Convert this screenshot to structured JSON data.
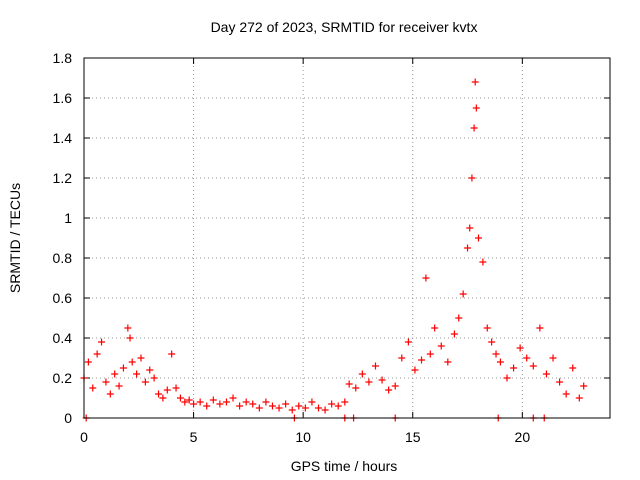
{
  "chart_data": {
    "type": "scatter",
    "title": "Day 272 of 2023, SRMTID for receiver kvtx",
    "xlabel": "GPS time / hours",
    "ylabel": "SRMTID / TECUs",
    "xlim": [
      0,
      24
    ],
    "ylim": [
      0,
      1.8
    ],
    "xticks": [
      0,
      5,
      10,
      15,
      20
    ],
    "yticks": [
      0,
      0.2,
      0.4,
      0.6,
      0.8,
      1,
      1.2,
      1.4,
      1.6,
      1.8
    ],
    "ytick_labels": [
      "0",
      "0.2",
      "0.4",
      "0.6",
      "0.8",
      "1",
      "1.2",
      "1.4",
      "1.6",
      "1.8"
    ],
    "grid": true,
    "marker": "plus",
    "series_color": "#ff0000",
    "series": [
      {
        "name": "SRMTID",
        "x": [
          0.0,
          0.2,
          0.4,
          0.6,
          0.8,
          1.0,
          1.2,
          1.4,
          1.6,
          1.8,
          2.0,
          2.1,
          2.2,
          2.4,
          2.6,
          2.8,
          3.0,
          3.2,
          3.4,
          3.6,
          3.8,
          4.0,
          4.2,
          4.4,
          4.6,
          4.8,
          5.0,
          5.3,
          5.6,
          5.9,
          6.2,
          6.5,
          6.8,
          7.1,
          7.4,
          7.7,
          8.0,
          8.3,
          8.6,
          8.9,
          9.2,
          9.5,
          9.8,
          10.1,
          10.4,
          10.7,
          11.0,
          11.3,
          11.6,
          11.9,
          12.1,
          12.4,
          12.7,
          13.0,
          13.3,
          13.6,
          13.9,
          14.2,
          14.5,
          14.8,
          15.1,
          15.4,
          15.6,
          15.8,
          16.0,
          16.3,
          16.6,
          16.9,
          17.1,
          17.3,
          17.5,
          17.6,
          17.7,
          17.8,
          17.85,
          17.9,
          18.0,
          18.2,
          18.4,
          18.6,
          18.8,
          19.0,
          19.3,
          19.6,
          19.9,
          20.2,
          20.5,
          20.8,
          21.1,
          21.4,
          21.7,
          22.0,
          22.3,
          22.6,
          22.8
        ],
        "y": [
          0.2,
          0.28,
          0.15,
          0.32,
          0.38,
          0.18,
          0.12,
          0.22,
          0.16,
          0.25,
          0.45,
          0.4,
          0.28,
          0.22,
          0.3,
          0.18,
          0.24,
          0.2,
          0.12,
          0.1,
          0.14,
          0.32,
          0.15,
          0.1,
          0.08,
          0.09,
          0.07,
          0.08,
          0.06,
          0.09,
          0.07,
          0.08,
          0.1,
          0.06,
          0.08,
          0.07,
          0.05,
          0.08,
          0.06,
          0.05,
          0.07,
          0.04,
          0.06,
          0.05,
          0.08,
          0.05,
          0.04,
          0.07,
          0.06,
          0.08,
          0.17,
          0.15,
          0.22,
          0.18,
          0.26,
          0.19,
          0.14,
          0.16,
          0.3,
          0.38,
          0.24,
          0.29,
          0.7,
          0.32,
          0.45,
          0.36,
          0.28,
          0.42,
          0.5,
          0.62,
          0.85,
          0.95,
          1.2,
          1.45,
          1.68,
          1.55,
          0.9,
          0.78,
          0.45,
          0.38,
          0.32,
          0.28,
          0.2,
          0.25,
          0.35,
          0.3,
          0.26,
          0.45,
          0.22,
          0.3,
          0.18,
          0.12,
          0.25,
          0.1,
          0.16
        ]
      }
    ],
    "baseline_markers_x": [
      0.1,
      9.6,
      11.9,
      12.3,
      14.2,
      18.9,
      20.5,
      21.0
    ],
    "baseline_markers_y": [
      0,
      0,
      0,
      0,
      0,
      0,
      0,
      0
    ]
  }
}
